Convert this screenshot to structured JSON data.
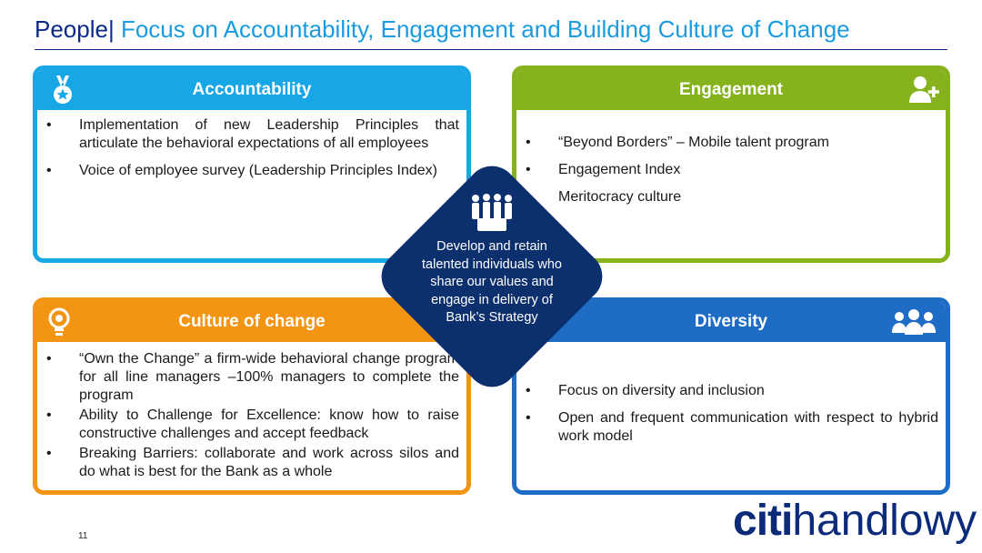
{
  "header": {
    "title_lead": "People|",
    "title_rest": " Focus on Accountability, Engagement and Building Culture of Change"
  },
  "cards": {
    "accountability": {
      "title": "Accountability",
      "icon": "medal-icon",
      "items": [
        "Implementation of new Leadership Principles that articulate the behavioral expectations of all employees",
        "Voice of employee survey (Leadership Principles Index)"
      ]
    },
    "engagement": {
      "title": "Engagement",
      "icon": "add-user-icon",
      "items": [
        "“Beyond Borders” – Mobile talent program",
        "Engagement Index",
        "Meritocracy culture"
      ]
    },
    "culture": {
      "title": "Culture of change",
      "icon": "lightbulb-icon",
      "items": [
        "“Own the Change” a firm-wide behavioral change program for all line managers –100% managers to complete the program",
        "Ability to Challenge for Excellence: know how to raise constructive challenges and accept feedback",
        "Breaking Barriers: collaborate and work across silos and do what is best for the Bank as a whole"
      ]
    },
    "diversity": {
      "title": "Diversity",
      "icon": "group-icon",
      "items": [
        "Focus on diversity and inclusion",
        "Open and frequent communication with respect to hybrid work model"
      ]
    }
  },
  "center": {
    "icon": "people-icon",
    "text": "Develop and retain talented individuals who share our values and engage in delivery of Bank’s Strategy"
  },
  "footer": {
    "page_number": "11",
    "logo_citi": "citi",
    "logo_handlowy": "handlowy"
  },
  "colors": {
    "accountability": "#17a6e6",
    "engagement": "#86b21e",
    "culture": "#f39412",
    "diversity": "#1e6cc6",
    "center": "#0c2f6e",
    "title_lead": "#0a2a8a",
    "title_rest": "#1a9be0"
  }
}
